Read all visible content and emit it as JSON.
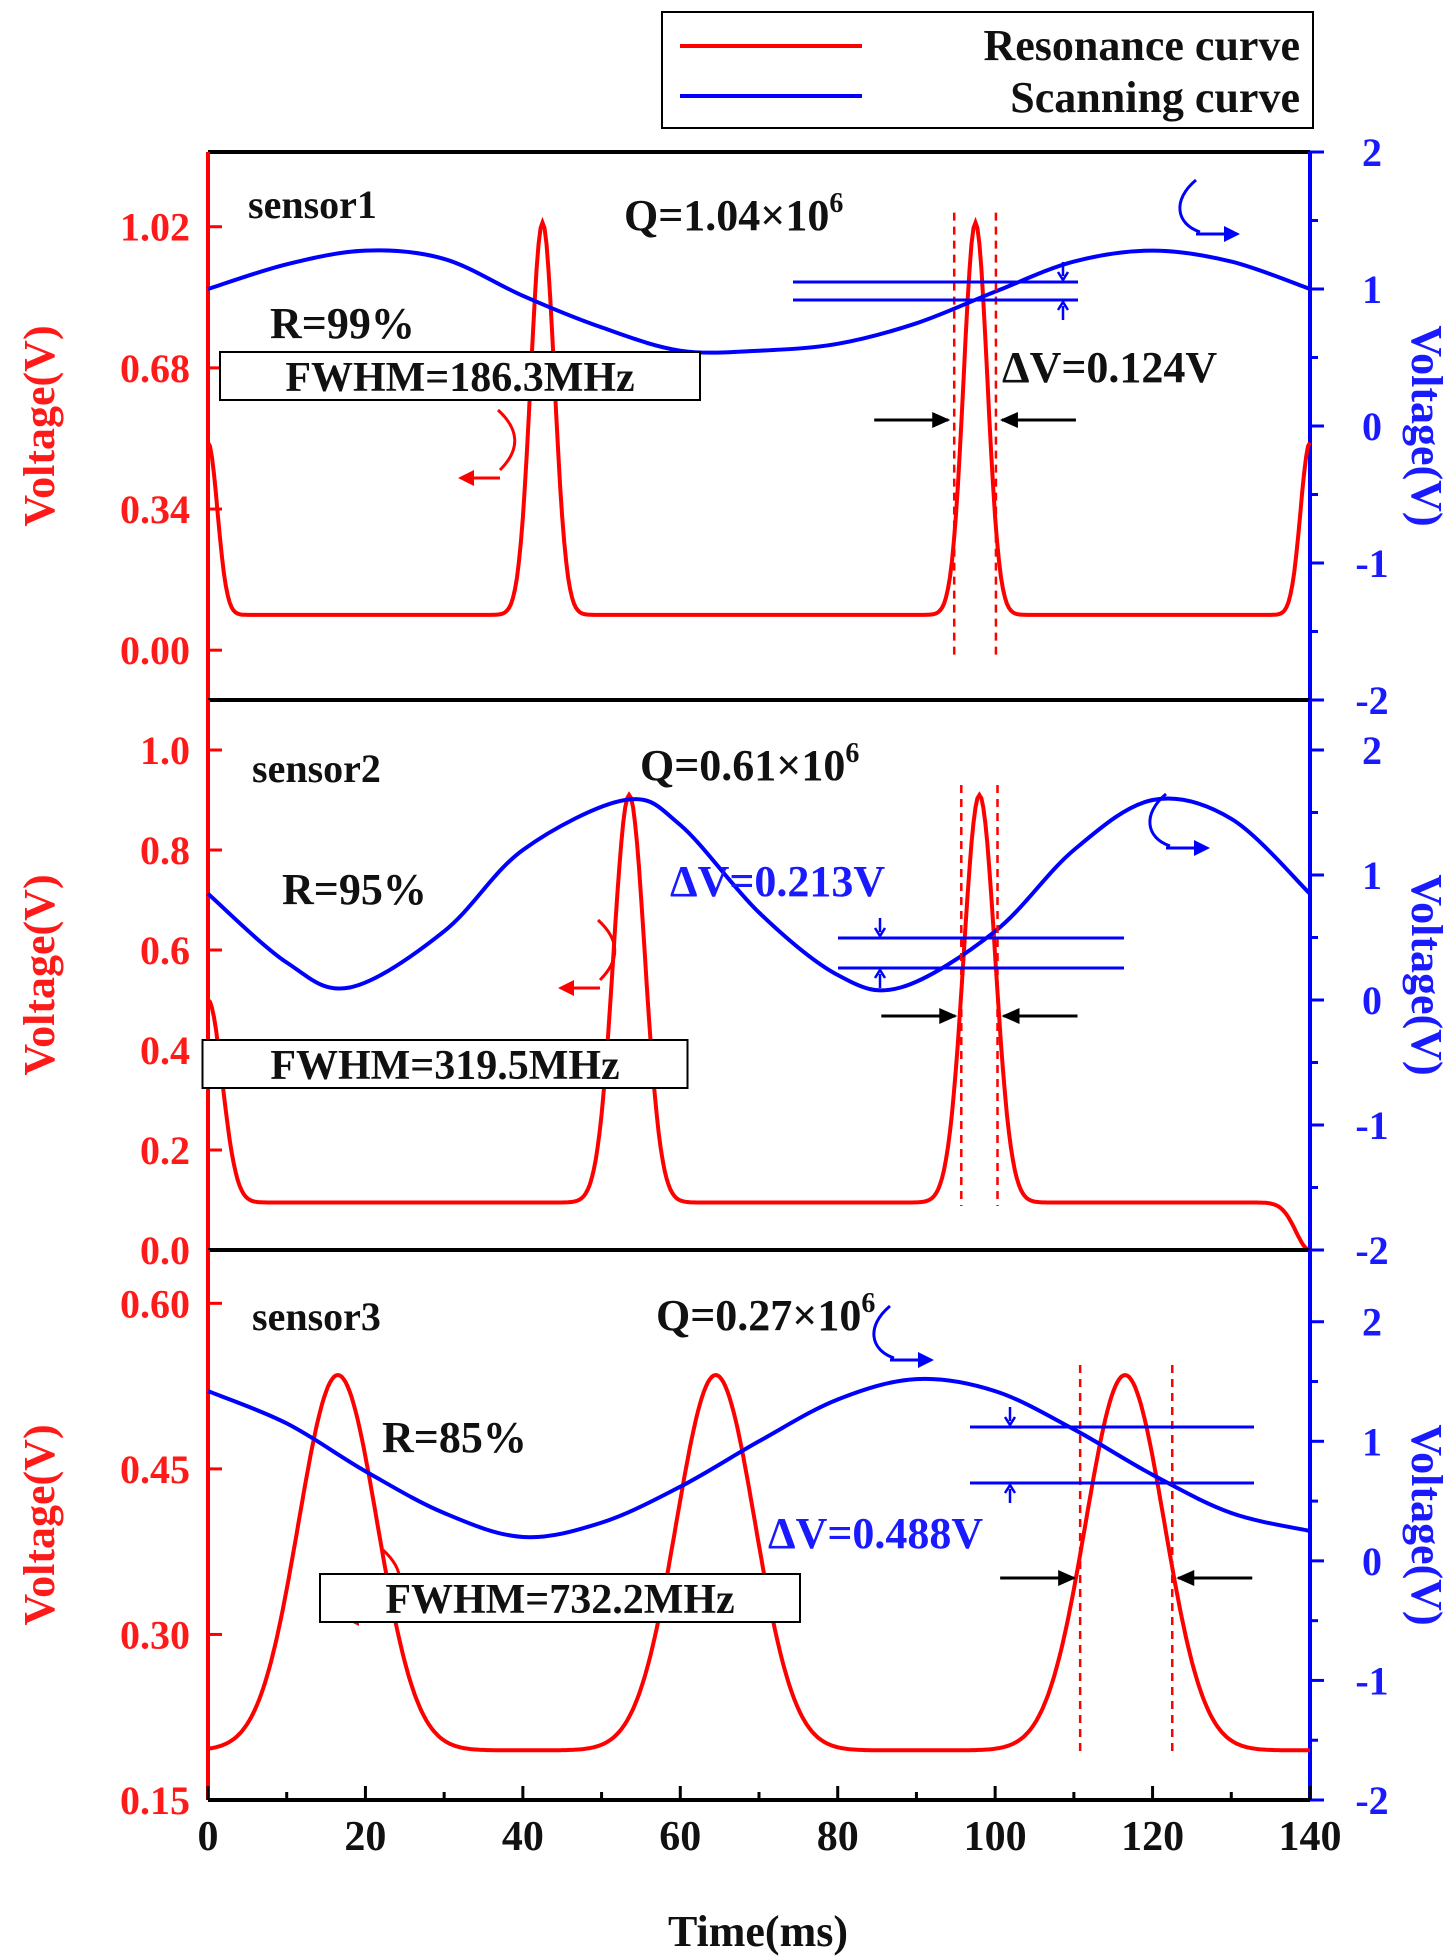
{
  "colors": {
    "resonance": "#ff0000",
    "scanning": "#0000ff",
    "axis_left": "#ff0000",
    "axis_right": "#0000ff",
    "text": "#000000"
  },
  "legend": {
    "items": [
      {
        "label": "Resonance curve",
        "color": "#ff0000"
      },
      {
        "label": "Scanning curve",
        "color": "#0000ff"
      }
    ]
  },
  "x_axis": {
    "label": "Time(ms)",
    "range": [
      0,
      140
    ],
    "ticks": [
      "0",
      "20",
      "40",
      "60",
      "80",
      "100",
      "120",
      "140"
    ]
  },
  "chart_data": [
    {
      "type": "line",
      "title": "sensor1",
      "xlabel": "Time(ms)",
      "ylabel_left": "Voltage(V)",
      "ylabel_right": "Voltage(V)",
      "xlim": [
        0,
        140
      ],
      "ylim_left": [
        -0.12,
        1.2
      ],
      "ylim_right": [
        -2,
        2
      ],
      "left_ticks": [
        "1.02",
        "0.68",
        "0.34",
        "0.00"
      ],
      "right_ticks": [
        "2",
        "1",
        "0",
        "-1",
        "-2"
      ],
      "annotations": {
        "reflectivity": "R=99%",
        "q_prefix": "Q=1.04×10",
        "q_exp": "6",
        "fwhm": "FWHM=186.3MHz",
        "delta_v": "ΔV=0.124V"
      },
      "series": [
        {
          "name": "Resonance curve",
          "axis": "left",
          "baseline": 0.085,
          "peaks": [
            {
              "x": 42.5,
              "height": 1.03,
              "width": 1.5
            },
            {
              "x": 97.5,
              "height": 1.03,
              "width": 1.5
            }
          ],
          "edges": [
            {
              "x": 0,
              "height": 0.5,
              "width": 1.2
            },
            {
              "x": 140,
              "height": 0.5,
              "width": 1.2
            }
          ]
        },
        {
          "name": "Scanning curve",
          "axis": "right",
          "x": [
            0,
            10,
            20,
            30,
            40,
            50,
            60,
            70,
            80,
            90,
            100,
            110,
            120,
            130,
            140
          ],
          "y": [
            1.0,
            1.18,
            1.28,
            1.22,
            0.95,
            0.72,
            0.55,
            0.55,
            0.6,
            0.75,
            0.98,
            1.2,
            1.28,
            1.2,
            1.0
          ]
        }
      ],
      "fwhm_markers": [
        94.8,
        100.1
      ]
    },
    {
      "type": "line",
      "title": "sensor2",
      "xlabel": "Time(ms)",
      "ylabel_left": "Voltage(V)",
      "ylabel_right": "Voltage(V)",
      "xlim": [
        0,
        140
      ],
      "ylim_left": [
        0.0,
        1.1
      ],
      "ylim_right": [
        -2,
        2.4
      ],
      "left_ticks": [
        "1.0",
        "0.8",
        "0.6",
        "0.4",
        "0.2",
        "0.0"
      ],
      "right_ticks": [
        "2",
        "1",
        "0",
        "-1",
        "-2"
      ],
      "annotations": {
        "reflectivity": "R=95%",
        "q_prefix": "Q=0.61×10",
        "q_exp": "6",
        "fwhm": "FWHM=319.5MHz",
        "delta_v": "ΔV=0.213V"
      },
      "series": [
        {
          "name": "Resonance curve",
          "axis": "left",
          "baseline": 0.095,
          "peaks": [
            {
              "x": 53.5,
              "height": 0.91,
              "width": 2.0
            },
            {
              "x": 98.0,
              "height": 0.91,
              "width": 2.0
            }
          ],
          "edges": [
            {
              "x": 0,
              "height": 0.5,
              "width": 1.8
            },
            {
              "x": 140,
              "height": 0.0,
              "width": 1.8
            }
          ]
        },
        {
          "name": "Scanning curve",
          "axis": "right",
          "x": [
            0,
            10,
            18,
            30,
            40,
            53,
            60,
            70,
            80,
            88,
            100,
            110,
            120,
            130,
            140
          ],
          "y": [
            0.85,
            0.3,
            0.1,
            0.55,
            1.2,
            1.6,
            1.4,
            0.7,
            0.2,
            0.1,
            0.55,
            1.2,
            1.6,
            1.45,
            0.85
          ]
        }
      ],
      "fwhm_markers": [
        95.7,
        100.3
      ]
    },
    {
      "type": "line",
      "title": "sensor3",
      "xlabel": "Time(ms)",
      "ylabel_left": "Voltage(V)",
      "ylabel_right": "Voltage(V)",
      "xlim": [
        0,
        140
      ],
      "ylim_left": [
        0.15,
        0.6483
      ],
      "ylim_right": [
        -2,
        2.6
      ],
      "left_ticks": [
        "0.60",
        "0.45",
        "0.30",
        "0.15"
      ],
      "right_ticks": [
        "2",
        "1",
        "0",
        "-1",
        "-2"
      ],
      "annotations": {
        "reflectivity": "R=85%",
        "q_prefix": "Q=0.27×10",
        "q_exp": "6",
        "fwhm": "FWHM=732.2MHz",
        "delta_v": "ΔV=0.488V"
      },
      "series": [
        {
          "name": "Resonance curve",
          "axis": "left",
          "baseline": 0.195,
          "peaks": [
            {
              "x": 16.5,
              "height": 0.535,
              "width": 5.0
            },
            {
              "x": 64.5,
              "height": 0.535,
              "width": 5.0
            },
            {
              "x": 116.5,
              "height": 0.535,
              "width": 5.0
            }
          ],
          "edges": []
        },
        {
          "name": "Scanning curve",
          "axis": "right",
          "x": [
            0,
            10,
            20,
            30,
            40,
            50,
            60,
            70,
            80,
            90,
            100,
            110,
            120,
            130,
            140
          ],
          "y": [
            1.42,
            1.15,
            0.75,
            0.4,
            0.2,
            0.32,
            0.62,
            1.0,
            1.35,
            1.52,
            1.42,
            1.1,
            0.72,
            0.4,
            0.25
          ]
        }
      ],
      "fwhm_markers": [
        110.8,
        122.5
      ]
    }
  ]
}
